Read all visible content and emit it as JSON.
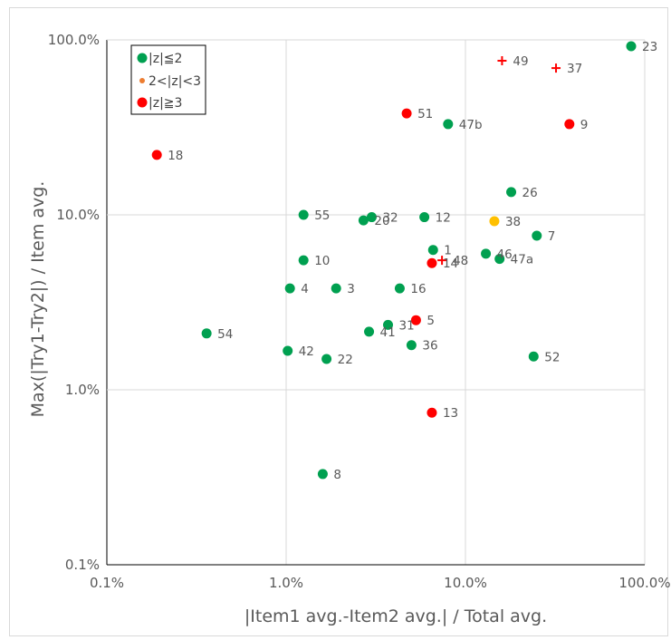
{
  "chart_data": {
    "type": "scatter",
    "xlabel": "|Item1 avg.-Item2 avg.| / Total avg.",
    "ylabel": "Max(|Try1-Try2|) / Item avg.",
    "x_scale": "log",
    "y_scale": "log",
    "xlim": [
      0.1,
      100
    ],
    "ylim": [
      0.1,
      100
    ],
    "grid": true,
    "x_ticks": [
      {
        "value": 0.1,
        "label": "0.1%"
      },
      {
        "value": 1,
        "label": "1.0%"
      },
      {
        "value": 10,
        "label": "10.0%"
      },
      {
        "value": 100,
        "label": "100.0%"
      }
    ],
    "y_ticks": [
      {
        "value": 0.1,
        "label": "0.1%"
      },
      {
        "value": 1,
        "label": "1.0%"
      },
      {
        "value": 10,
        "label": "10.0%"
      },
      {
        "value": 100,
        "label": "100.0%"
      }
    ],
    "legend": {
      "position": "top-left",
      "entries": [
        {
          "name": "|z|≦2",
          "color": "#00a050",
          "marker": "large-dot"
        },
        {
          "name": "2<|z|<3",
          "color": "#ed7d31",
          "marker": "small-dot"
        },
        {
          "name": "|z|≧3",
          "color": "#ff0000",
          "marker": "large-dot"
        }
      ]
    },
    "colors": {
      "green": "#00a050",
      "orange": "#ffc000",
      "red": "#ff0000",
      "grid": "#d9d9d9"
    },
    "points": [
      {
        "label": "23",
        "x": 84,
        "y": 92,
        "group": "green",
        "marker": "dot"
      },
      {
        "label": "49",
        "x": 16,
        "y": 76,
        "group": "red",
        "marker": "plus"
      },
      {
        "label": "37",
        "x": 32,
        "y": 69,
        "group": "red",
        "marker": "plus"
      },
      {
        "label": "51",
        "x": 4.7,
        "y": 38,
        "group": "red",
        "marker": "dot"
      },
      {
        "label": "47b",
        "x": 8,
        "y": 33,
        "group": "green",
        "marker": "dot"
      },
      {
        "label": "9",
        "x": 38,
        "y": 33,
        "group": "red",
        "marker": "dot"
      },
      {
        "label": "18",
        "x": 0.19,
        "y": 22,
        "group": "red",
        "marker": "dot"
      },
      {
        "label": "26",
        "x": 18,
        "y": 13.5,
        "group": "green",
        "marker": "dot"
      },
      {
        "label": "55",
        "x": 1.25,
        "y": 10,
        "group": "green",
        "marker": "dot"
      },
      {
        "label": "32",
        "x": 3.0,
        "y": 9.7,
        "group": "green",
        "marker": "dot"
      },
      {
        "label": "20",
        "x": 2.7,
        "y": 9.3,
        "group": "green",
        "marker": "dot"
      },
      {
        "label": "12",
        "x": 5.9,
        "y": 9.7,
        "group": "green",
        "marker": "dot"
      },
      {
        "label": "38",
        "x": 14.5,
        "y": 9.2,
        "group": "orange",
        "marker": "dot"
      },
      {
        "label": "7",
        "x": 25,
        "y": 7.6,
        "group": "green",
        "marker": "dot"
      },
      {
        "label": "1",
        "x": 6.6,
        "y": 6.3,
        "group": "green",
        "marker": "dot"
      },
      {
        "label": "46",
        "x": 13,
        "y": 6.0,
        "group": "green",
        "marker": "dot"
      },
      {
        "label": "47a",
        "x": 15.5,
        "y": 5.6,
        "group": "green",
        "marker": "dot"
      },
      {
        "label": "10",
        "x": 1.25,
        "y": 5.5,
        "group": "green",
        "marker": "dot"
      },
      {
        "label": "48",
        "x": 7.4,
        "y": 5.5,
        "group": "red",
        "marker": "plus"
      },
      {
        "label": "14",
        "x": 6.5,
        "y": 5.3,
        "group": "red",
        "marker": "dot"
      },
      {
        "label": "4",
        "x": 1.05,
        "y": 3.8,
        "group": "green",
        "marker": "dot"
      },
      {
        "label": "3",
        "x": 1.9,
        "y": 3.8,
        "group": "green",
        "marker": "dot"
      },
      {
        "label": "16",
        "x": 4.3,
        "y": 3.8,
        "group": "green",
        "marker": "dot"
      },
      {
        "label": "5",
        "x": 5.3,
        "y": 2.5,
        "group": "red",
        "marker": "dot"
      },
      {
        "label": "31",
        "x": 3.7,
        "y": 2.35,
        "group": "green",
        "marker": "dot"
      },
      {
        "label": "41",
        "x": 2.9,
        "y": 2.15,
        "group": "green",
        "marker": "dot"
      },
      {
        "label": "54",
        "x": 0.36,
        "y": 2.1,
        "group": "green",
        "marker": "dot"
      },
      {
        "label": "36",
        "x": 5.0,
        "y": 1.8,
        "group": "green",
        "marker": "dot"
      },
      {
        "label": "42",
        "x": 1.02,
        "y": 1.67,
        "group": "green",
        "marker": "dot"
      },
      {
        "label": "22",
        "x": 1.68,
        "y": 1.5,
        "group": "green",
        "marker": "dot"
      },
      {
        "label": "52",
        "x": 24,
        "y": 1.55,
        "group": "green",
        "marker": "dot"
      },
      {
        "label": "13",
        "x": 6.5,
        "y": 0.74,
        "group": "red",
        "marker": "dot"
      },
      {
        "label": "8",
        "x": 1.6,
        "y": 0.33,
        "group": "green",
        "marker": "dot"
      }
    ]
  }
}
